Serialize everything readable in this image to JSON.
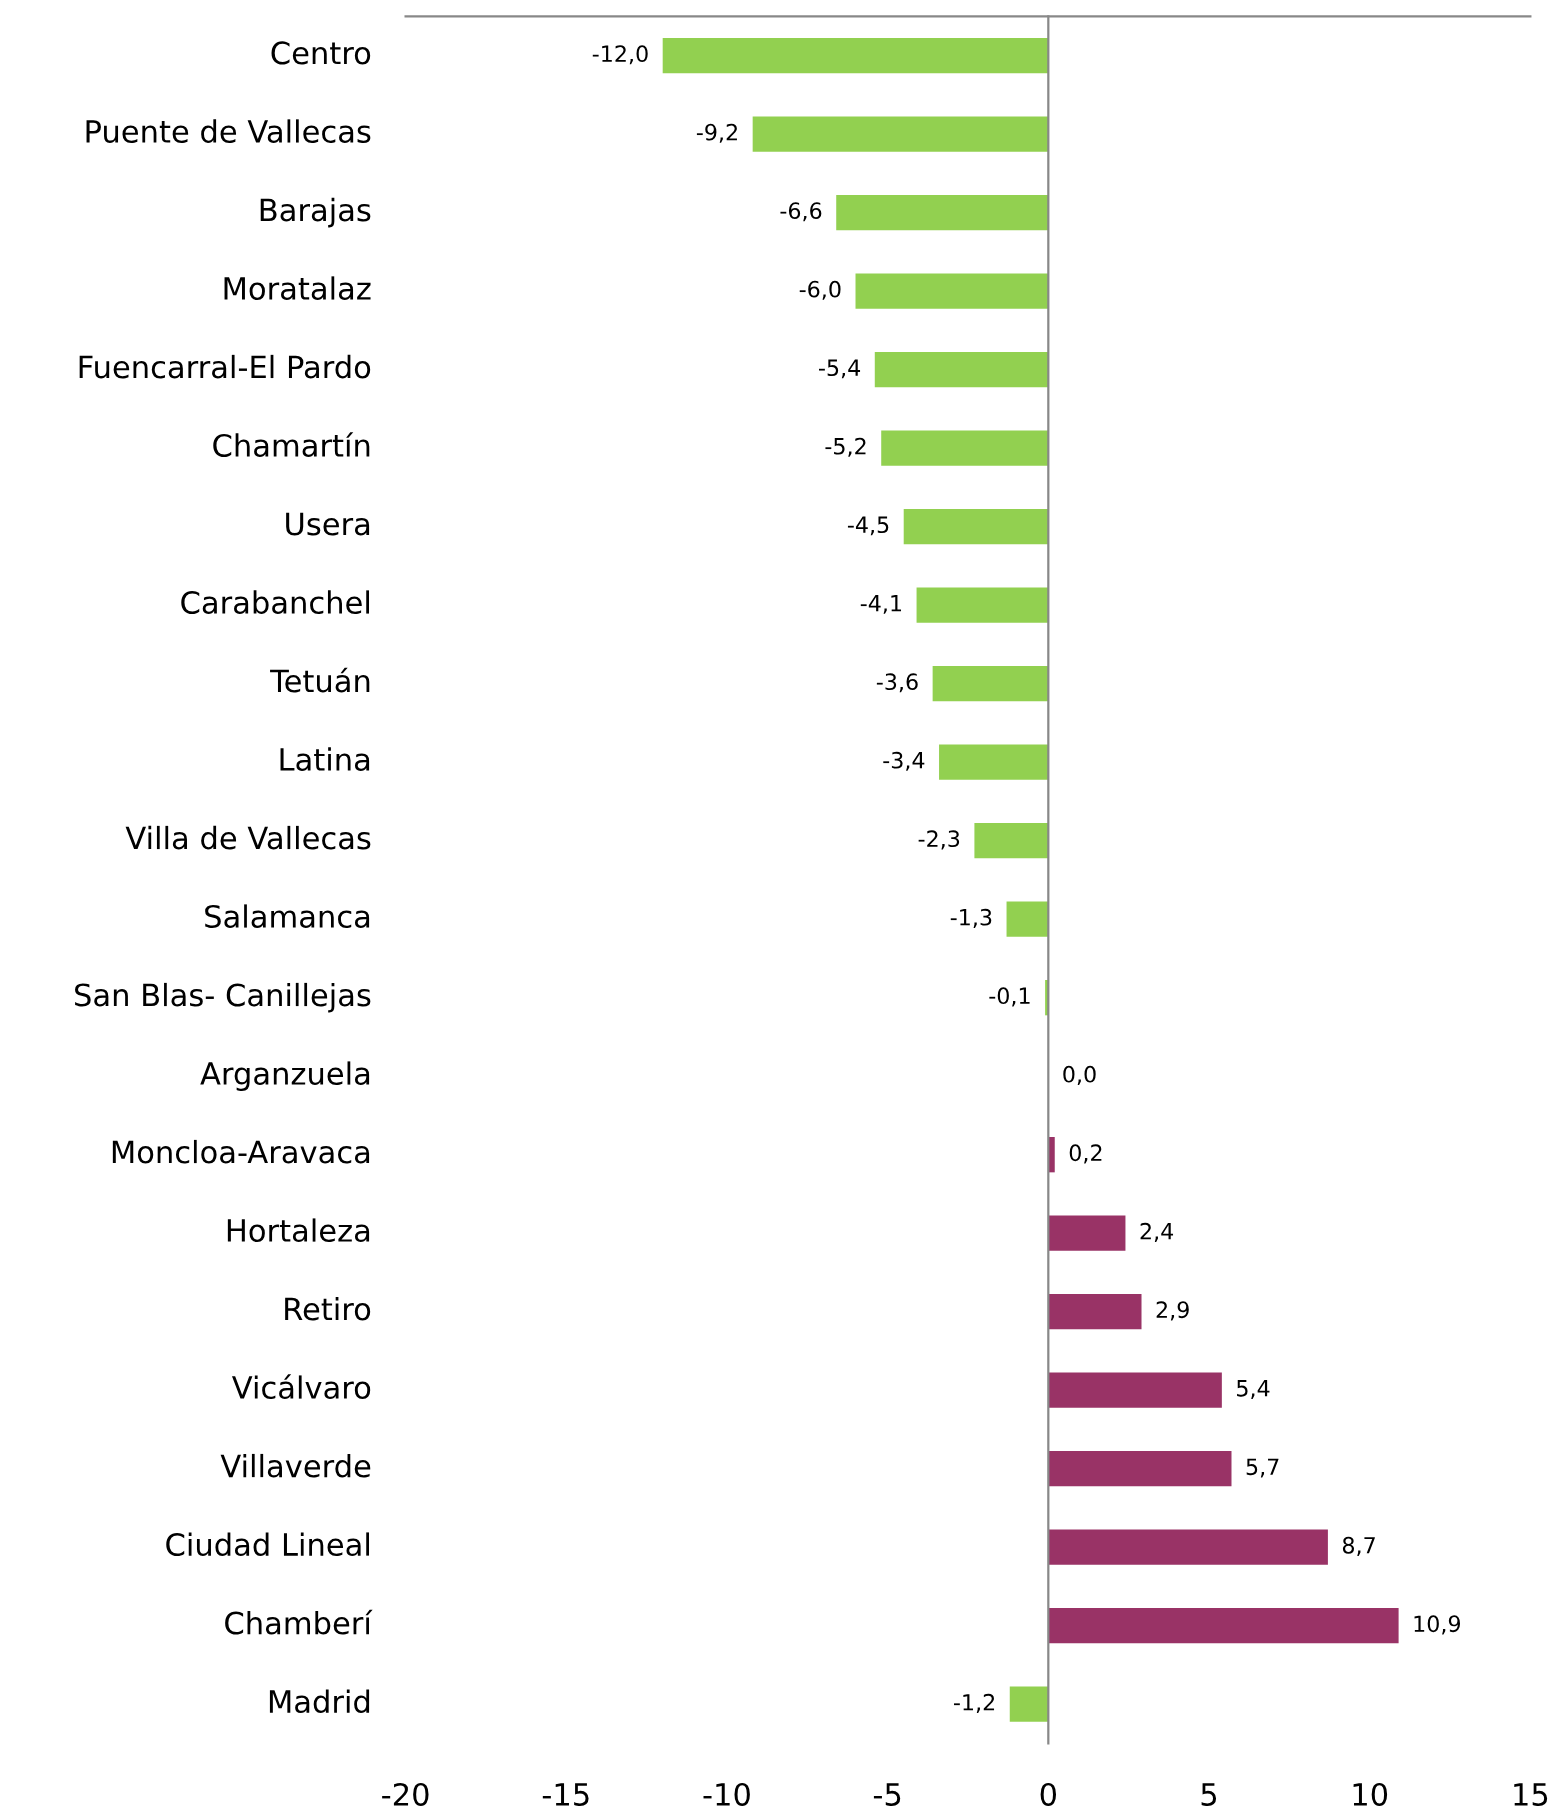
{
  "chart_data": {
    "type": "bar",
    "orientation": "horizontal",
    "categories": [
      "Centro",
      "Puente de Vallecas",
      "Barajas",
      "Moratalaz",
      "Fuencarral-El Pardo",
      "Chamartín",
      "Usera",
      "Carabanchel",
      "Tetuán",
      "Latina",
      "Villa de Vallecas",
      "Salamanca",
      "San Blas- Canillejas",
      "Arganzuela",
      "Moncloa-Aravaca",
      "Hortaleza",
      "Retiro",
      "Vicálvaro",
      "Villaverde",
      "Ciudad Lineal",
      "Chamberí",
      "Madrid"
    ],
    "values": [
      -12.0,
      -9.2,
      -6.6,
      -6.0,
      -5.4,
      -5.2,
      -4.5,
      -4.1,
      -3.6,
      -3.4,
      -2.3,
      -1.3,
      -0.1,
      0.0,
      0.2,
      2.4,
      2.9,
      5.4,
      5.7,
      8.7,
      10.9,
      -1.2
    ],
    "value_labels": [
      "-12,0",
      "-9,2",
      "-6,6",
      "-6,0",
      "-5,4",
      "-5,2",
      "-4,5",
      "-4,1",
      "-3,6",
      "-3,4",
      "-2,3",
      "-1,3",
      "-0,1",
      "0,0",
      "0,2",
      "2,4",
      "2,9",
      "5,4",
      "5,7",
      "8,7",
      "10,9",
      "-1,2"
    ],
    "colors": [
      "#92d050",
      "#92d050",
      "#92d050",
      "#92d050",
      "#92d050",
      "#92d050",
      "#92d050",
      "#92d050",
      "#92d050",
      "#92d050",
      "#92d050",
      "#92d050",
      "#92d050",
      "#993366",
      "#993366",
      "#993366",
      "#993366",
      "#993366",
      "#993366",
      "#993366",
      "#993366",
      "#92d050"
    ],
    "xlim": [
      -20,
      15
    ],
    "xticks": [
      -20,
      -15,
      -10,
      -5,
      0,
      5,
      10,
      15
    ],
    "legend": false
  }
}
